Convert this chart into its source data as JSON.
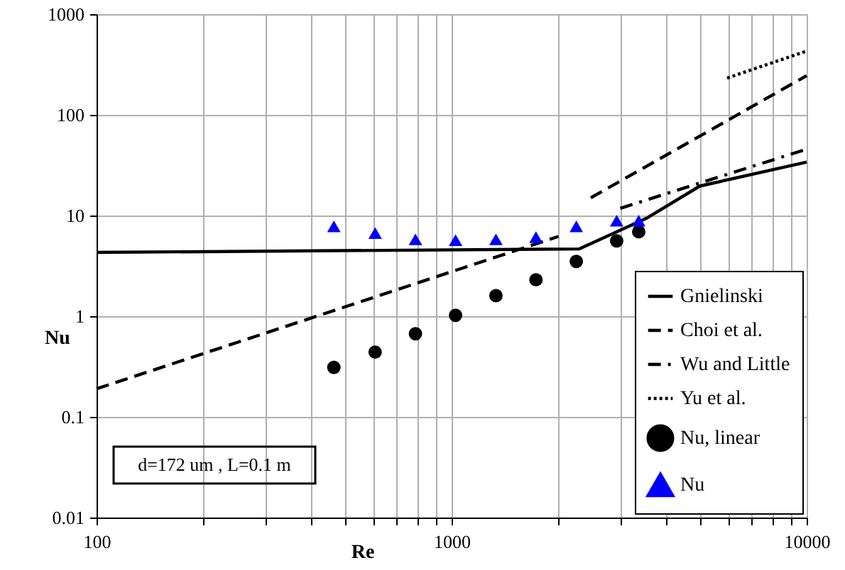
{
  "chart_data": {
    "type": "line",
    "xlabel": "Re",
    "ylabel": "Nu",
    "log": "xy",
    "grid": true,
    "legend": "bottom right",
    "xlim": [
      100,
      10000
    ],
    "xticks": [
      100,
      {
        "value": 200,
        "label": null
      },
      {
        "value": 300,
        "label": null
      },
      {
        "value": 400,
        "label": null
      },
      {
        "value": 500,
        "label": null
      },
      {
        "value": 600,
        "label": null
      },
      {
        "value": 700,
        "label": null
      },
      {
        "value": 800,
        "label": null
      },
      {
        "value": 900,
        "label": null
      },
      1000,
      {
        "value": 2000,
        "label": null
      },
      {
        "value": 3000,
        "label": null
      },
      {
        "value": 4000,
        "label": null
      },
      {
        "value": 5000,
        "label": null
      },
      {
        "value": 6000,
        "label": null
      },
      {
        "value": 7000,
        "label": null
      },
      {
        "value": 8000,
        "label": null
      },
      {
        "value": 9000,
        "label": null
      },
      10000
    ],
    "ylim": [
      0.01,
      1000
    ],
    "yticks": [
      0.01,
      0.1,
      1,
      10,
      100,
      1000
    ],
    "annotations": [
      "d=172 um , L=0.1 m"
    ],
    "series": [
      {
        "name": "Gnielinski",
        "type": "line",
        "line_style": "solid",
        "color": "#000000",
        "x": [
          100,
          2290,
          3560,
          5000,
          10000
        ],
        "values": [
          4.3,
          4.66,
          9.5,
          19.6,
          34
        ]
      },
      {
        "name": "Choi et al.",
        "type": "line",
        "line_style": "dashed",
        "color": "#000000",
        "x": [
          100,
          2000,
          2200,
          2466,
          10000
        ],
        "values": [
          0.19,
          6.2,
          null,
          15,
          245
        ]
      },
      {
        "name": "Wu and Little",
        "type": "line",
        "line_style": "dashdot",
        "color": "#000000",
        "x": [
          2985,
          10000
        ],
        "values": [
          11.8,
          45.6
        ]
      },
      {
        "name": "Yu et al.",
        "type": "line",
        "line_style": "dotted",
        "color": "#000000",
        "x": [
          5970,
          10000
        ],
        "values": [
          232,
          430
        ]
      },
      {
        "name": "Nu, linear",
        "type": "scatter",
        "marker": "circle",
        "color": "#000000",
        "x": [
          466,
          609,
          791,
          1026,
          1333,
          1728,
          2245,
          2917,
          3365
        ],
        "values": [
          0.31,
          0.44,
          0.67,
          1.02,
          1.6,
          2.3,
          3.5,
          5.6,
          6.9
        ]
      },
      {
        "name": "Nu",
        "type": "scatter",
        "marker": "triangle",
        "color": "#0000ff",
        "x": [
          466,
          609,
          791,
          1026,
          1333,
          1728,
          2245,
          2917,
          3365
        ],
        "values": [
          7.8,
          6.7,
          5.8,
          5.7,
          5.8,
          6.1,
          7.8,
          8.9,
          8.9
        ]
      }
    ]
  }
}
